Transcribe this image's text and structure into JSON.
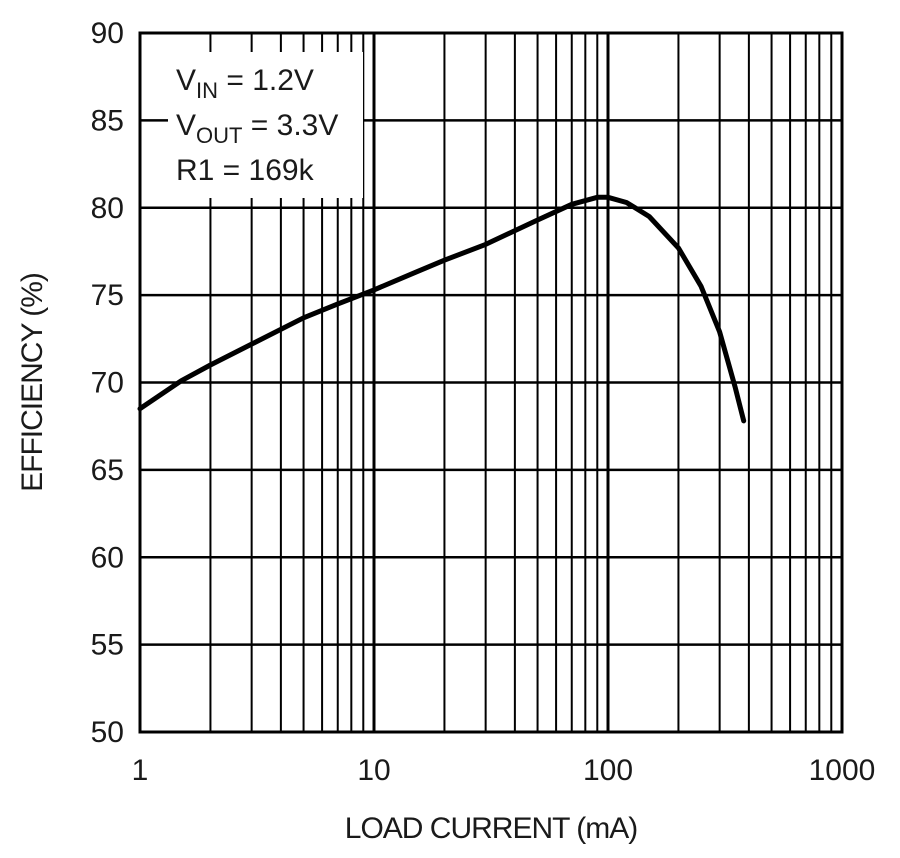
{
  "chart_data": {
    "type": "line",
    "xlabel": "LOAD CURRENT (mA)",
    "ylabel": "EFFICIENCY (%)",
    "xscale": "log",
    "xlim": [
      1,
      1000
    ],
    "ylim": [
      50,
      90
    ],
    "x_ticks": [
      1,
      10,
      100,
      1000
    ],
    "x_tick_labels": [
      "1",
      "10",
      "100",
      "1000"
    ],
    "y_ticks": [
      50,
      55,
      60,
      65,
      70,
      75,
      80,
      85,
      90
    ],
    "y_tick_labels": [
      "50",
      "55",
      "60",
      "65",
      "70",
      "75",
      "80",
      "85",
      "90"
    ],
    "grid": true,
    "annotations": [
      {
        "main": "V",
        "sub": "IN",
        "rest": " = 1.2V"
      },
      {
        "main": "V",
        "sub": "OUT",
        "rest": " = 3.3V"
      },
      {
        "main": "R1 = 169k",
        "sub": "",
        "rest": ""
      }
    ],
    "series": [
      {
        "x": [
          1,
          1.5,
          2,
          3,
          5,
          7,
          10,
          15,
          20,
          30,
          50,
          70,
          90,
          100,
          120,
          150,
          200,
          250,
          300,
          350,
          380
        ],
        "y": [
          68.5,
          70.1,
          71.0,
          72.2,
          73.7,
          74.5,
          75.3,
          76.3,
          77.0,
          77.9,
          79.3,
          80.2,
          80.6,
          80.6,
          80.3,
          79.5,
          77.7,
          75.5,
          72.9,
          69.7,
          67.8
        ]
      }
    ],
    "line_color": "#000000"
  }
}
